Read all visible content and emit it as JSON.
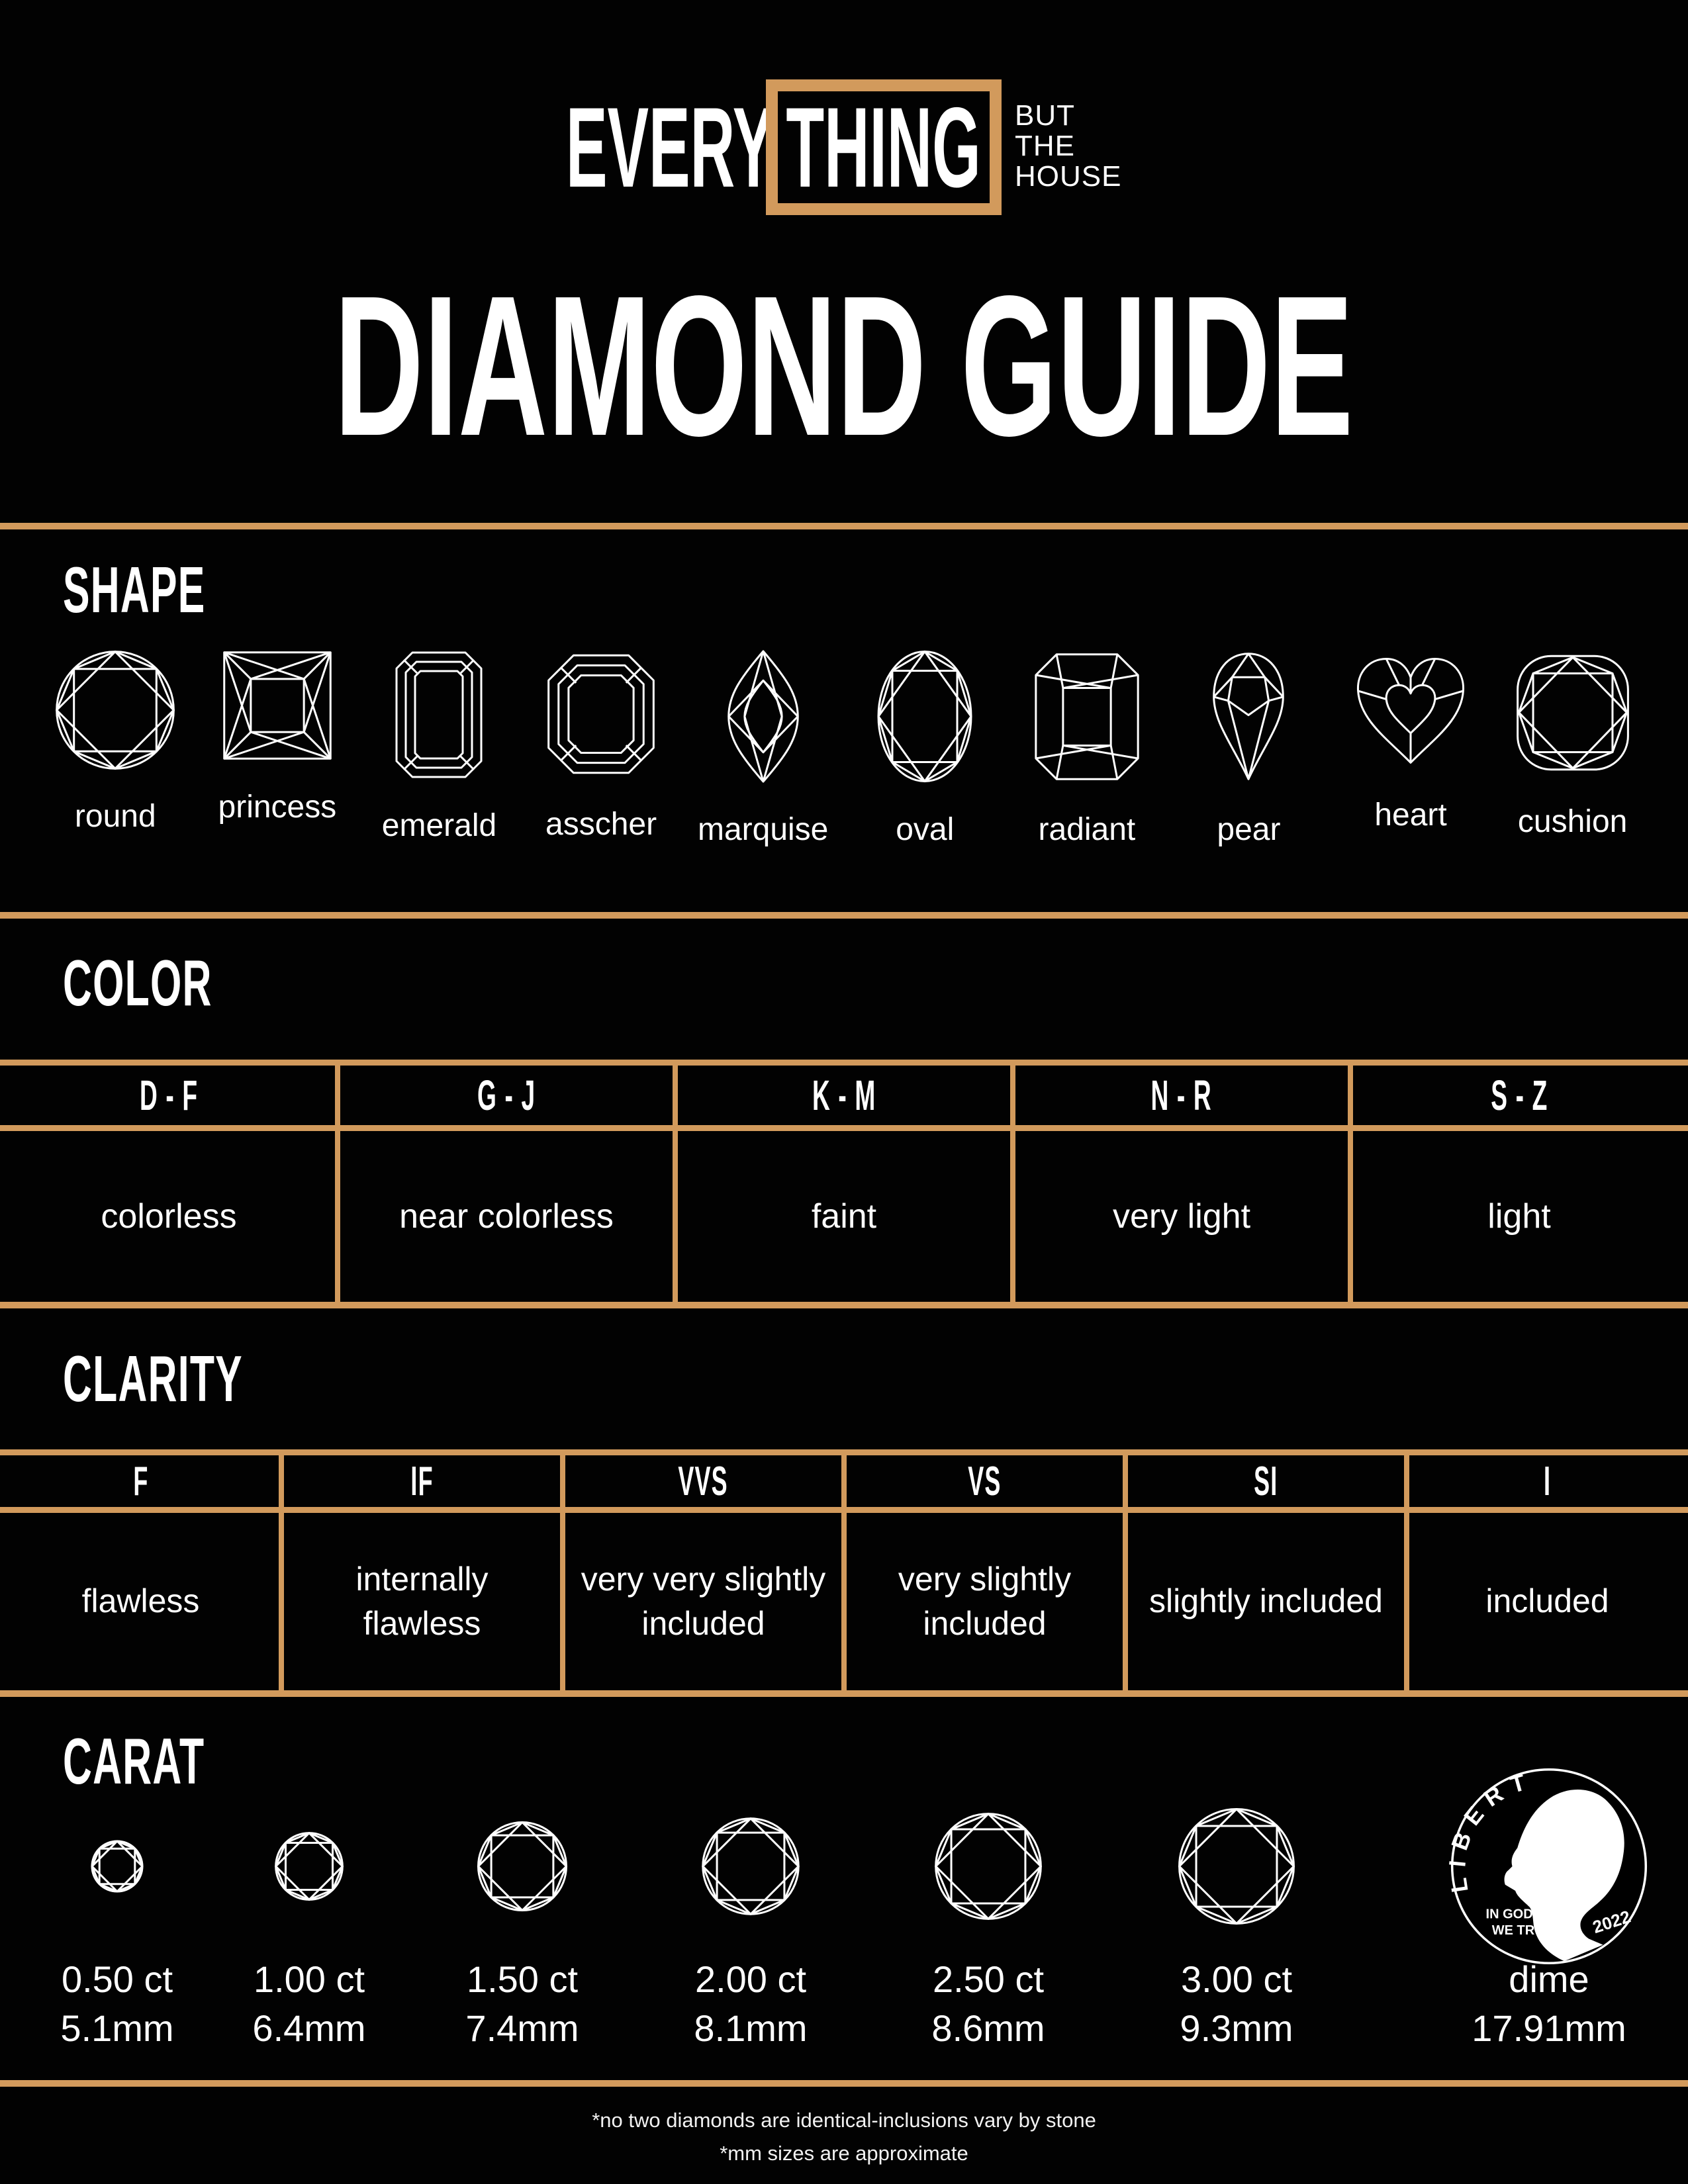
{
  "colors": {
    "background": "#020202",
    "gold": "#D29A5C",
    "text": "#FFFFFF"
  },
  "logo": {
    "every": "EVERY",
    "thing": "THING",
    "tagline_line1": "BUT",
    "tagline_line2": "THE",
    "tagline_line3": "HOUSE"
  },
  "title": "DIAMOND GUIDE",
  "shape": {
    "heading": "SHAPE",
    "items": [
      {
        "label": "round",
        "icon": "round-diamond-icon"
      },
      {
        "label": "princess",
        "icon": "princess-diamond-icon"
      },
      {
        "label": "emerald",
        "icon": "emerald-diamond-icon"
      },
      {
        "label": "asscher",
        "icon": "asscher-diamond-icon"
      },
      {
        "label": "marquise",
        "icon": "marquise-diamond-icon"
      },
      {
        "label": "oval",
        "icon": "oval-diamond-icon"
      },
      {
        "label": "radiant",
        "icon": "radiant-diamond-icon"
      },
      {
        "label": "pear",
        "icon": "pear-diamond-icon"
      },
      {
        "label": "heart",
        "icon": "heart-diamond-icon"
      },
      {
        "label": "cushion",
        "icon": "cushion-diamond-icon"
      }
    ]
  },
  "color": {
    "heading": "COLOR",
    "columns": [
      {
        "grade": "D - F",
        "description": "colorless"
      },
      {
        "grade": "G - J",
        "description": "near colorless"
      },
      {
        "grade": "K - M",
        "description": "faint"
      },
      {
        "grade": "N - R",
        "description": "very light"
      },
      {
        "grade": "S - Z",
        "description": "light"
      }
    ]
  },
  "clarity": {
    "heading": "CLARITY",
    "columns": [
      {
        "grade": "F",
        "description": "flawless"
      },
      {
        "grade": "IF",
        "description": "internally flawless"
      },
      {
        "grade": "VVS",
        "description": "very very slightly included"
      },
      {
        "grade": "VS",
        "description": "very slightly included"
      },
      {
        "grade": "SI",
        "description": "slightly included"
      },
      {
        "grade": "I",
        "description": "included"
      }
    ]
  },
  "carat": {
    "heading": "CARAT",
    "items": [
      {
        "carat": "0.50 ct",
        "mm": "5.1mm",
        "icon": "round-diamond-icon"
      },
      {
        "carat": "1.00 ct",
        "mm": "6.4mm",
        "icon": "round-diamond-icon"
      },
      {
        "carat": "1.50 ct",
        "mm": "7.4mm",
        "icon": "round-diamond-icon"
      },
      {
        "carat": "2.00 ct",
        "mm": "8.1mm",
        "icon": "round-diamond-icon"
      },
      {
        "carat": "2.50 ct",
        "mm": "8.6mm",
        "icon": "round-diamond-icon"
      },
      {
        "carat": "3.00 ct",
        "mm": "9.3mm",
        "icon": "round-diamond-icon"
      },
      {
        "carat": "dime",
        "mm": "17.91mm",
        "icon": "dime-coin-icon"
      }
    ]
  },
  "dime": {
    "liberty": "LIBERTY",
    "motto_line1": "IN GOD",
    "motto_line2": "WE TRUST",
    "year": "2022"
  },
  "footnotes": [
    "*no two diamonds are identical-inclusions vary by stone",
    "*mm sizes are approximate"
  ]
}
